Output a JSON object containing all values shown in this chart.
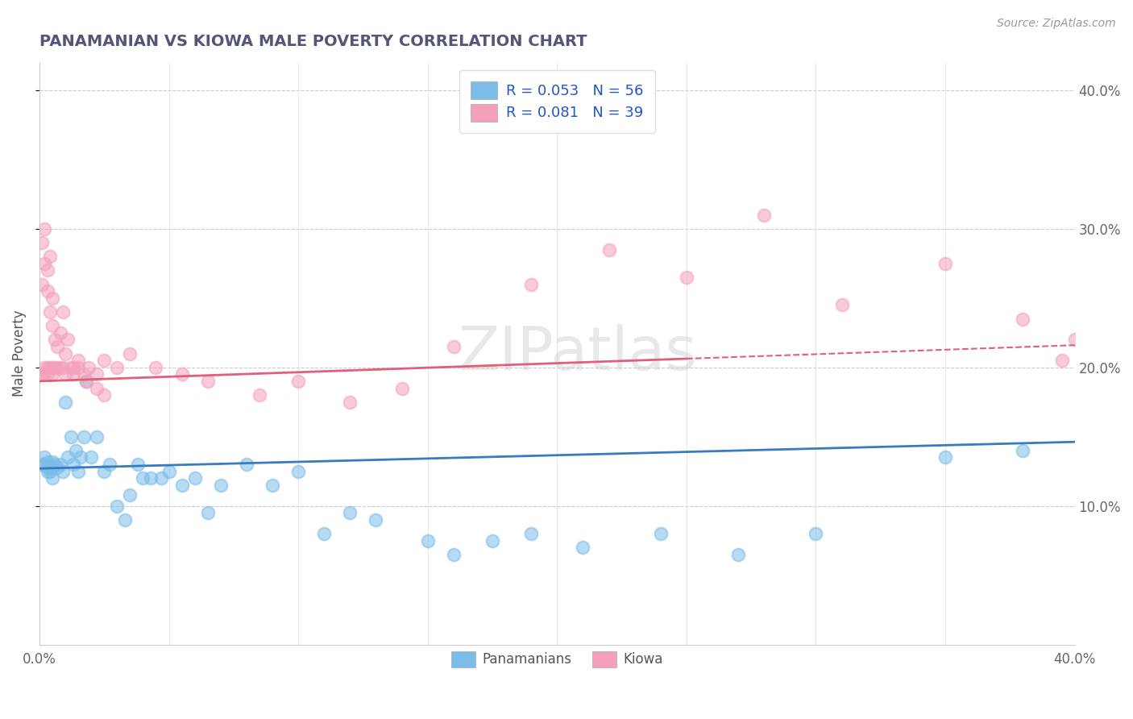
{
  "title": "PANAMANIAN VS KIOWA MALE POVERTY CORRELATION CHART",
  "source_text": "Source: ZipAtlas.com",
  "ylabel": "Male Poverty",
  "xlim": [
    0.0,
    0.4
  ],
  "ylim": [
    0.0,
    0.42
  ],
  "xtick_positions": [
    0.0,
    0.05,
    0.1,
    0.15,
    0.2,
    0.25,
    0.3,
    0.35,
    0.4
  ],
  "xtick_labels": [
    "0.0%",
    "",
    "",
    "",
    "",
    "",
    "",
    "",
    "40.0%"
  ],
  "ytick_positions": [
    0.1,
    0.2,
    0.3,
    0.4
  ],
  "ytick_labels": [
    "10.0%",
    "20.0%",
    "30.0%",
    "40.0%"
  ],
  "panamanian_color": "#7bbde8",
  "kiowa_color": "#f5a0ba",
  "regression_blue": "#3a7bbf",
  "regression_pink": "#e0607a",
  "legend_r_blue": "R = 0.053",
  "legend_n_blue": "N = 56",
  "legend_r_pink": "R = 0.081",
  "legend_n_pink": "N = 39",
  "watermark": "ZIPatlas",
  "panamanian_x": [
    0.001,
    0.002,
    0.002,
    0.003,
    0.003,
    0.003,
    0.004,
    0.004,
    0.005,
    0.005,
    0.005,
    0.006,
    0.007,
    0.008,
    0.009,
    0.01,
    0.011,
    0.012,
    0.013,
    0.014,
    0.015,
    0.016,
    0.017,
    0.018,
    0.02,
    0.022,
    0.025,
    0.027,
    0.03,
    0.033,
    0.035,
    0.038,
    0.04,
    0.043,
    0.047,
    0.05,
    0.055,
    0.06,
    0.065,
    0.07,
    0.08,
    0.09,
    0.1,
    0.11,
    0.12,
    0.13,
    0.15,
    0.16,
    0.175,
    0.19,
    0.21,
    0.24,
    0.27,
    0.3,
    0.35,
    0.38
  ],
  "panamanian_y": [
    0.13,
    0.13,
    0.135,
    0.125,
    0.128,
    0.132,
    0.125,
    0.128,
    0.12,
    0.128,
    0.132,
    0.13,
    0.128,
    0.13,
    0.125,
    0.175,
    0.135,
    0.15,
    0.13,
    0.14,
    0.125,
    0.135,
    0.15,
    0.19,
    0.135,
    0.15,
    0.125,
    0.13,
    0.1,
    0.09,
    0.108,
    0.13,
    0.12,
    0.12,
    0.12,
    0.125,
    0.115,
    0.12,
    0.095,
    0.115,
    0.13,
    0.115,
    0.125,
    0.08,
    0.095,
    0.09,
    0.075,
    0.065,
    0.075,
    0.08,
    0.07,
    0.08,
    0.065,
    0.08,
    0.135,
    0.14
  ],
  "kiowa_x": [
    0.001,
    0.002,
    0.002,
    0.003,
    0.003,
    0.004,
    0.005,
    0.005,
    0.006,
    0.007,
    0.008,
    0.009,
    0.01,
    0.012,
    0.013,
    0.015,
    0.017,
    0.019,
    0.022,
    0.025,
    0.03,
    0.035,
    0.045,
    0.055,
    0.065,
    0.085,
    0.1,
    0.12,
    0.14,
    0.16,
    0.19,
    0.22,
    0.25,
    0.28,
    0.31,
    0.35,
    0.38,
    0.395,
    0.4
  ],
  "kiowa_y": [
    0.195,
    0.195,
    0.2,
    0.195,
    0.2,
    0.2,
    0.2,
    0.195,
    0.2,
    0.2,
    0.2,
    0.2,
    0.195,
    0.2,
    0.2,
    0.2,
    0.195,
    0.2,
    0.195,
    0.205,
    0.2,
    0.21,
    0.2,
    0.195,
    0.19,
    0.18,
    0.19,
    0.175,
    0.185,
    0.215,
    0.26,
    0.285,
    0.265,
    0.31,
    0.245,
    0.275,
    0.235,
    0.205,
    0.22
  ],
  "kiowa_x_extra": [
    0.001,
    0.001,
    0.002,
    0.002,
    0.003,
    0.003,
    0.004,
    0.004,
    0.005,
    0.005,
    0.006,
    0.007,
    0.008,
    0.009,
    0.01,
    0.011,
    0.013,
    0.015,
    0.018,
    0.022,
    0.025
  ],
  "kiowa_y_extra": [
    0.26,
    0.29,
    0.275,
    0.3,
    0.255,
    0.27,
    0.24,
    0.28,
    0.25,
    0.23,
    0.22,
    0.215,
    0.225,
    0.24,
    0.21,
    0.22,
    0.195,
    0.205,
    0.19,
    0.185,
    0.18
  ]
}
